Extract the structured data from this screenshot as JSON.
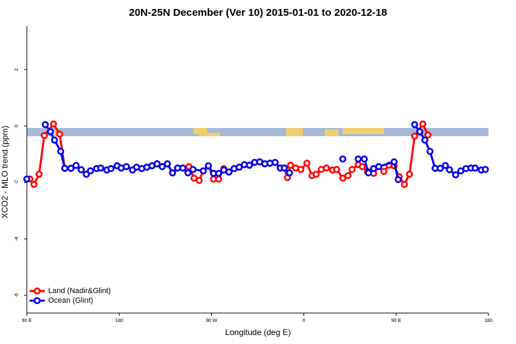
{
  "chart_data": {
    "type": "line",
    "title": "20N-25N December (Ver 10)   2015-01-01 to 2020-12-18",
    "xlabel": "Longitude (deg E)",
    "ylabel": "XCO2 - MLO trend (ppm)",
    "xlim": [
      90,
      540
    ],
    "xticks": [
      {
        "value": 90,
        "label": "90 E"
      },
      180,
      {
        "value": 270,
        "label": "90 W"
      },
      {
        "value": 360,
        "label": "0"
      },
      {
        "value": 450,
        "label": "90 E"
      },
      {
        "value": 540,
        "label": "180"
      }
    ],
    "ylim": [
      -6.63,
      3.54
    ],
    "yticks": [
      -6,
      -4,
      -2,
      0,
      2
    ],
    "legend": "bottom-left",
    "series": [
      {
        "name": "Land (Nadir&Glint)",
        "color": "#ff0000",
        "x": [
          93,
          97,
          102,
          107,
          116,
          122,
          127,
          133,
          138,
          143,
          148,
          152,
          158,
          162,
          168,
          172,
          178,
          182,
          187,
          193,
          197,
          202,
          207,
          212,
          217,
          222,
          227,
          232,
          237,
          242,
          248,
          253,
          258,
          262,
          267,
          272,
          277,
          282,
          287,
          292,
          297,
          302,
          307,
          312,
          317,
          322,
          327,
          332,
          337,
          341,
          344,
          347,
          352,
          357,
          363,
          368,
          372,
          377,
          382,
          388,
          392,
          398,
          403,
          407,
          413,
          417,
          422,
          428,
          433,
          438,
          443,
          448,
          453,
          458,
          463,
          468,
          476,
          481
        ],
        "values": [
          -1.88,
          -2.07,
          -1.71,
          -0.34,
          0.07,
          -0.29,
          -1.5,
          -1.5,
          -1.4,
          -1.55,
          -1.71,
          -1.59,
          -1.51,
          -1.49,
          -1.56,
          -1.51,
          -1.41,
          -1.49,
          -1.44,
          -1.56,
          -1.46,
          -1.51,
          -1.46,
          -1.41,
          -1.34,
          -1.44,
          -1.34,
          -1.66,
          -1.49,
          -1.49,
          -1.44,
          -1.85,
          -1.93,
          -1.59,
          -1.42,
          -1.88,
          -1.88,
          -1.51,
          -1.63,
          -1.51,
          -1.46,
          -1.37,
          -1.39,
          -1.29,
          -1.27,
          -1.34,
          -1.32,
          -1.29,
          -1.49,
          -1.49,
          -1.83,
          -1.39,
          -1.49,
          -1.54,
          -1.32,
          -1.76,
          -1.71,
          -1.54,
          -1.49,
          -1.56,
          -1.54,
          -1.85,
          -1.76,
          -1.54,
          -1.37,
          -1.44,
          -1.61,
          -1.68,
          -1.44,
          -1.61,
          -1.39,
          -1.41,
          -1.8,
          -2.07,
          -1.71,
          -0.36,
          0.07,
          -0.32
        ]
      },
      {
        "name": "Ocean (Glint)",
        "color": "#0000ee",
        "x": [
          90,
          null,
          108,
          113,
          117,
          123,
          127,
          133,
          138,
          143,
          148,
          152,
          158,
          162,
          168,
          172,
          178,
          182,
          187,
          193,
          197,
          202,
          207,
          212,
          217,
          222,
          227,
          232,
          237,
          242,
          247,
          252,
          262,
          267,
          272,
          277,
          282,
          287,
          292,
          297,
          302,
          307,
          312,
          317,
          322,
          327,
          332,
          337,
          341,
          346,
          null,
          398,
          null,
          413,
          419,
          423,
          428,
          433,
          448,
          452,
          null,
          468,
          473,
          478,
          483,
          488,
          493,
          498,
          502,
          508,
          513,
          518,
          523,
          527,
          533,
          537
        ],
        "values": [
          -1.88,
          null,
          0.05,
          -0.2,
          -0.5,
          -0.9,
          -1.5,
          -1.5,
          -1.4,
          -1.55,
          -1.71,
          -1.59,
          -1.51,
          -1.49,
          -1.56,
          -1.51,
          -1.41,
          -1.49,
          -1.44,
          -1.56,
          -1.46,
          -1.51,
          -1.46,
          -1.41,
          -1.34,
          -1.44,
          -1.34,
          -1.66,
          -1.49,
          -1.49,
          -1.66,
          -1.54,
          -1.59,
          -1.41,
          -1.68,
          -1.68,
          -1.56,
          -1.63,
          -1.51,
          -1.46,
          -1.37,
          -1.39,
          -1.29,
          -1.27,
          -1.34,
          -1.32,
          -1.29,
          -1.49,
          -1.49,
          -1.66,
          null,
          -1.17,
          null,
          -1.17,
          -1.17,
          -1.66,
          -1.51,
          -1.44,
          -1.27,
          -1.9,
          null,
          0.05,
          -0.2,
          -0.5,
          -0.9,
          -1.5,
          -1.5,
          -1.4,
          -1.55,
          -1.73,
          -1.59,
          -1.51,
          -1.49,
          -1.49,
          -1.56,
          -1.54
        ]
      }
    ]
  }
}
